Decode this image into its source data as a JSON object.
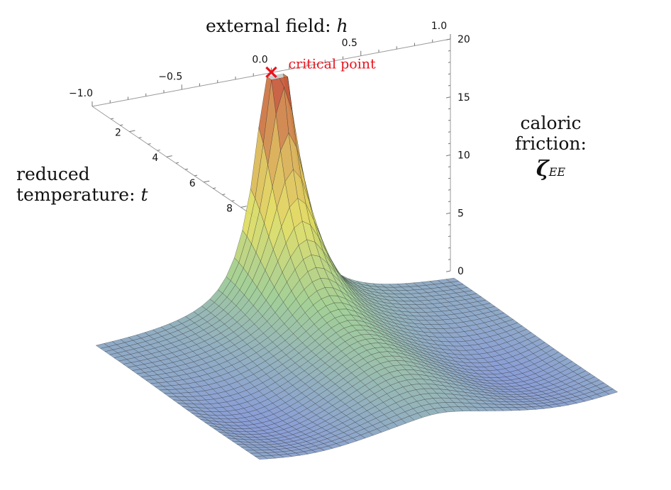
{
  "chart_data": {
    "type": "surface3d",
    "title": "",
    "axes": {
      "h": {
        "label": "external field:",
        "symbol": "h",
        "range": [
          -1.0,
          1.0
        ],
        "ticks": [
          -1.0,
          -0.5,
          0.0,
          0.5,
          1.0
        ],
        "tick_labels": [
          "−1.0",
          "−0.5",
          "0.0",
          "0.5",
          "1.0"
        ]
      },
      "t": {
        "label_line1": "reduced",
        "label_line2": "temperature:",
        "symbol": "t",
        "range": [
          0,
          9
        ],
        "ticks": [
          2,
          4,
          6,
          8
        ],
        "tick_labels": [
          "2",
          "4",
          "6",
          "8"
        ]
      },
      "z": {
        "label_line1": "caloric friction:",
        "symbol": "ζ",
        "subscript": "EE",
        "range": [
          0,
          20
        ],
        "ticks": [
          0,
          5,
          10,
          15,
          20
        ],
        "tick_labels": [
          "0",
          "5",
          "10",
          "15",
          "20"
        ]
      }
    },
    "annotation": {
      "text": "critical point",
      "marker": "×",
      "h": 0.0,
      "t": 0.0,
      "color": "#e8141e"
    },
    "colormap": [
      "#7f93d8",
      "#9ccc90",
      "#e2dc5e",
      "#d8a852",
      "#c34b36"
    ],
    "grid_lines": true
  }
}
